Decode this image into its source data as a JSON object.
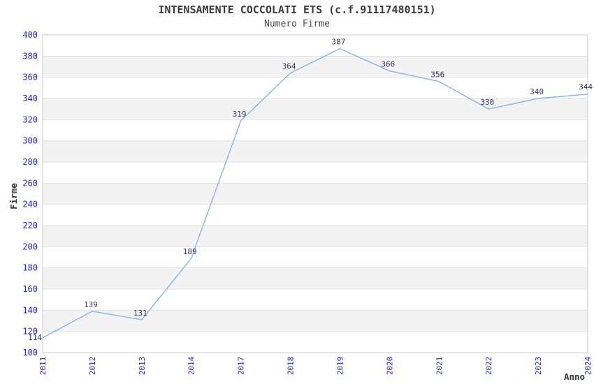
{
  "chart_data": {
    "type": "line",
    "title": "INTENSAMENTE COCCOLATI ETS (c.f.91117480151)",
    "subtitle": "Numero Firme",
    "xlabel": "Anno",
    "ylabel": "Firme",
    "categories": [
      "2011",
      "2012",
      "2013",
      "2014",
      "2017",
      "2018",
      "2019",
      "2020",
      "2021",
      "2022",
      "2023",
      "2024"
    ],
    "values": [
      114,
      139,
      131,
      189,
      319,
      364,
      387,
      366,
      356,
      330,
      340,
      344
    ],
    "ylim": [
      100,
      400
    ],
    "ytick_step": 20,
    "grid": "horizontal-only",
    "legend": "none",
    "background_bands": "alternating-white-gray",
    "point_markers": false,
    "colors": {
      "line": "#85b5e8",
      "axis_tick_label": "#2323cc",
      "data_label": "#333366",
      "band": "#f3f3f3",
      "gridline": "#e2e2e2",
      "plot_border": "#cccccc",
      "title": "#3a3a3a",
      "subtitle": "#4a4a4a",
      "axis_title": "#333333"
    }
  }
}
